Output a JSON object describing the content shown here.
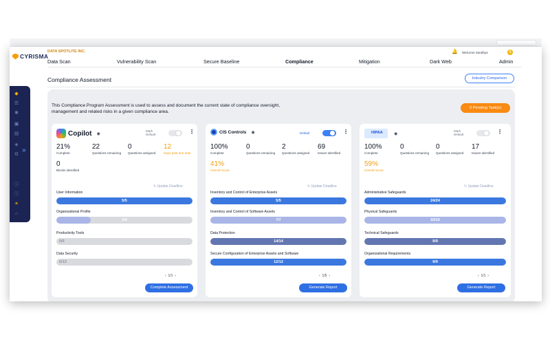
{
  "app": {
    "logo_text": "CYRISMA",
    "company": "DATA SPOTLITE INC.",
    "welcome": "Welcome Sandhya",
    "user_initial": "S"
  },
  "nav": [
    "Data Scan",
    "Vulnerability Scan",
    "Secure Baseline",
    "Compliance",
    "Mitigation",
    "Dark Web",
    "Admin"
  ],
  "nav_active": "Compliance",
  "page": {
    "title": "Compliance Assessment",
    "industry_button": "Industry Comparison",
    "intro": "This Compliance Program Assessment is used to assess and document the current state of compliance oversight, management and related risks in a given compliance area.",
    "pending_button": "0 Pending Task(s)"
  },
  "colors": {
    "accent": "#2f6fe4",
    "orange": "#f98a12",
    "sidebar": "#1b2453",
    "bar_blue": "#3a78e0",
    "bar_navy": "#6276b1",
    "bar_lavender": "#a9b5e6"
  },
  "cards": [
    {
      "name": "Copilot",
      "default_label": "Mark\nDefault",
      "toggle_on": false,
      "stats": [
        {
          "value": "21%",
          "label": "Complete"
        },
        {
          "value": "22",
          "label": "Questions remaining"
        },
        {
          "value": "0",
          "label": "Questions assigned"
        },
        {
          "value": "12",
          "label": "Days past due date",
          "orange": true
        },
        {
          "value": "0",
          "label": "Blocks identified"
        }
      ],
      "update_deadline": "Update Deadline",
      "items": [
        {
          "label": "User Information",
          "text": "5/5",
          "fraction": 1.0,
          "color": "#3a78e0"
        },
        {
          "label": "Organizational Profile",
          "text": "1/4",
          "fraction": 0.25,
          "color": "#a9b5e6"
        },
        {
          "label": "Productivity Tools",
          "text": "0/6",
          "fraction": 0,
          "color": "#d9dadd"
        },
        {
          "label": "Data Security",
          "text": "0/13",
          "fraction": 0,
          "color": "#d9dadd"
        }
      ],
      "pager": "1/1",
      "button": "Complete Assessment"
    },
    {
      "name": "CIS Controls",
      "default_label": "Default",
      "toggle_on": true,
      "stats": [
        {
          "value": "100%",
          "label": "Complete"
        },
        {
          "value": "0",
          "label": "Questions remaining"
        },
        {
          "value": "2",
          "label": "Questions assigned"
        },
        {
          "value": "69",
          "label": "Issues Identified"
        },
        {
          "value": "41%",
          "label": "Overall Score",
          "orange": true
        }
      ],
      "update_deadline": "Update Deadline",
      "items": [
        {
          "label": "Inventory and Control of Enterprise Assets",
          "text": "5/5",
          "fraction": 1.0,
          "color": "#3a78e0"
        },
        {
          "label": "Inventory and Control of Software Assets",
          "text": "7/7",
          "fraction": 1.0,
          "color": "#a9b5e6"
        },
        {
          "label": "Data Protection",
          "text": "14/14",
          "fraction": 1.0,
          "color": "#6276b1"
        },
        {
          "label": "Secure Configuration of Enterprise Assets and Software",
          "text": "12/12",
          "fraction": 1.0,
          "color": "#3a78e0"
        }
      ],
      "pager": "1/5",
      "button": "Generate Report"
    },
    {
      "name": "HIPAA",
      "default_label": "Mark\nDefault",
      "toggle_on": false,
      "stats": [
        {
          "value": "100%",
          "label": "Complete"
        },
        {
          "value": "0",
          "label": "Questions remaining"
        },
        {
          "value": "0",
          "label": "Questions assigned"
        },
        {
          "value": "17",
          "label": "Issues Identified"
        },
        {
          "value": "59%",
          "label": "Overall Score",
          "orange": true
        }
      ],
      "update_deadline": "Update Deadline",
      "items": [
        {
          "label": "Administrative Safeguards",
          "text": "24/24",
          "fraction": 1.0,
          "color": "#3a78e0"
        },
        {
          "label": "Physical Safeguards",
          "text": "10/10",
          "fraction": 1.0,
          "color": "#a9b5e6"
        },
        {
          "label": "Technical Safeguards",
          "text": "9/9",
          "fraction": 1.0,
          "color": "#6276b1"
        },
        {
          "label": "Organizational Requirements",
          "text": "9/9",
          "fraction": 1.0,
          "color": "#3a78e0"
        }
      ],
      "pager": "1/1",
      "button": "Generate Report"
    }
  ]
}
